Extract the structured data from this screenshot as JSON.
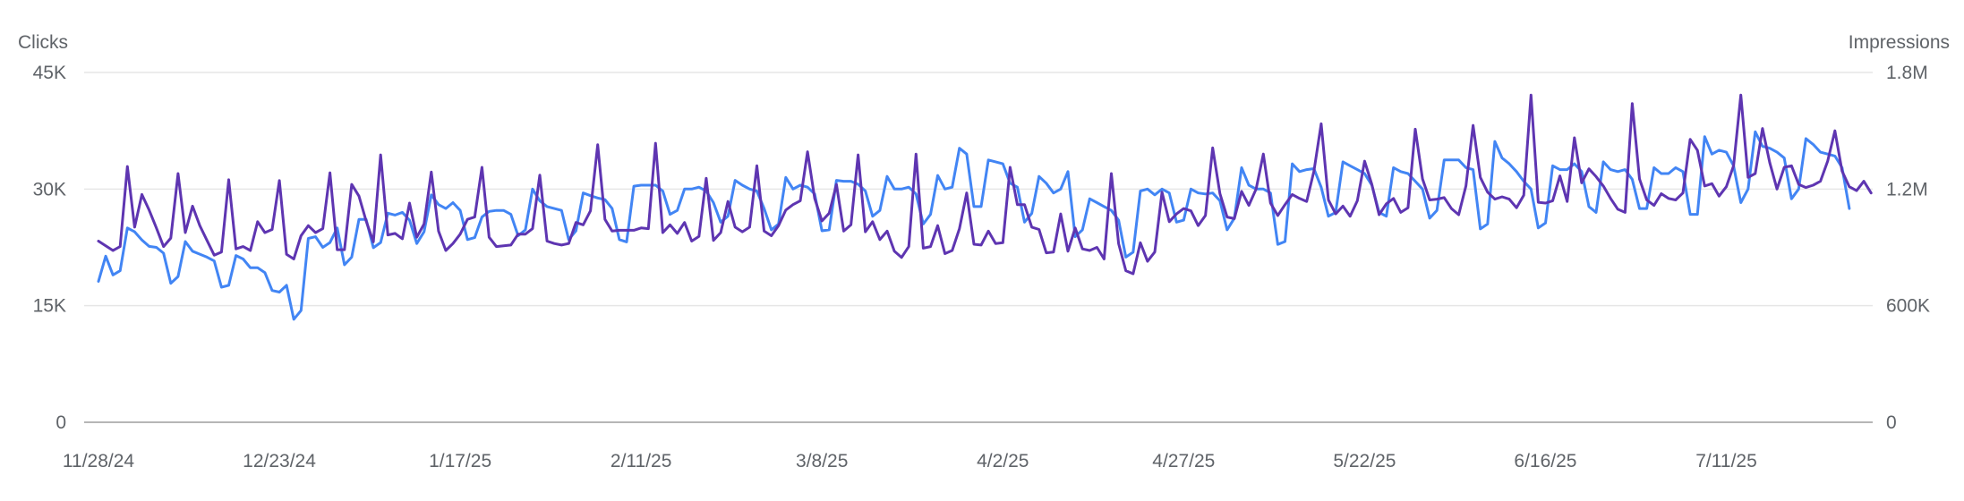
{
  "chart_data": {
    "type": "line",
    "y_left_label": "Clicks",
    "y_right_label": "Impressions",
    "y_left_ticks": [
      "45K",
      "30K",
      "15K",
      "0"
    ],
    "y_right_ticks": [
      "1.8M",
      "1.2M",
      "600K",
      "0"
    ],
    "y_left_lim": [
      0,
      45000
    ],
    "y_right_lim": [
      0,
      1800000
    ],
    "x_tick_labels": [
      "11/28/24",
      "12/23/24",
      "1/17/25",
      "2/11/25",
      "3/8/25",
      "4/2/25",
      "4/27/25",
      "5/22/25",
      "6/16/25",
      "7/11/25"
    ],
    "x_start": "2024-11-28",
    "x_end": "2025-07-29",
    "grid": true,
    "colors": {
      "clicks": "#5e35b1",
      "impressions": "#4285f4"
    },
    "series": [
      {
        "key": "clicks",
        "axis": "left",
        "values": [
          23300,
          22700,
          22100,
          22600,
          32900,
          25100,
          29300,
          27300,
          25000,
          22600,
          23700,
          32000,
          24400,
          27800,
          25300,
          23400,
          21500,
          21900,
          31200,
          22300,
          22600,
          22100,
          25800,
          24400,
          24800,
          31100,
          21600,
          21000,
          24000,
          25300,
          24400,
          24900,
          32100,
          22200,
          22200,
          30600,
          29100,
          25900,
          23200,
          34400,
          24100,
          24300,
          23600,
          28200,
          23800,
          25500,
          32200,
          24600,
          22100,
          23000,
          24200,
          26100,
          26400,
          32800,
          23800,
          22600,
          22700,
          22800,
          24200,
          24200,
          24900,
          31800,
          23300,
          23000,
          22800,
          23000,
          25700,
          25400,
          27200,
          35700,
          26100,
          24600,
          24700,
          24700,
          24700,
          25000,
          24900,
          35900,
          24400,
          25400,
          24300,
          25700,
          23300,
          23900,
          31400,
          23400,
          24400,
          28400,
          25100,
          24500,
          25100,
          33000,
          24600,
          24000,
          25300,
          27300,
          28000,
          28500,
          34800,
          28800,
          25900,
          26900,
          30600,
          24600,
          25400,
          34400,
          24500,
          25800,
          23500,
          24600,
          22000,
          21200,
          22600,
          34500,
          22400,
          22600,
          25300,
          21700,
          22100,
          24900,
          29500,
          22900,
          22800,
          24600,
          23000,
          23100,
          32800,
          28000,
          28000,
          25100,
          24800,
          21800,
          21900,
          26800,
          22000,
          25000,
          22300,
          22100,
          22500,
          21000,
          32000,
          23000,
          19500,
          19100,
          23100,
          20700,
          21900,
          29600,
          25800,
          26800,
          27500,
          27200,
          25300,
          26600,
          35300,
          29400,
          26400,
          26200,
          29700,
          27900,
          30000,
          34500,
          28200,
          26600,
          28000,
          29300,
          28800,
          28400,
          32300,
          38400,
          28600,
          26800,
          27800,
          26500,
          28500,
          33600,
          30600,
          26700,
          28100,
          28800,
          27000,
          27600,
          37700,
          31300,
          28600,
          28700,
          28900,
          27500,
          26700,
          30400,
          38200,
          31500,
          29600,
          28700,
          29000,
          28700,
          27600,
          29200,
          42100,
          28300,
          28200,
          28500,
          31700,
          28400,
          36600,
          30800,
          32600,
          31600,
          30400,
          28800,
          27400,
          27000,
          41000,
          31300,
          28600,
          27900,
          29400,
          28800,
          28600,
          29500,
          36400,
          35000,
          30400,
          30700,
          29100,
          30300,
          33000,
          42100,
          31500,
          32000,
          37800,
          33400,
          30000,
          32800,
          33000,
          30600,
          30200,
          30500,
          31000,
          33600,
          37500,
          32300,
          30300,
          29800,
          31000,
          29500
        ]
      },
      {
        "key": "impressions",
        "axis": "right",
        "values": [
          725000,
          855000,
          758000,
          780000,
          1000000,
          980000,
          938000,
          905000,
          900000,
          870000,
          715000,
          750000,
          930000,
          880000,
          865000,
          850000,
          830000,
          695000,
          705000,
          858000,
          840000,
          795000,
          795000,
          770000,
          678000,
          670000,
          705000,
          530000,
          575000,
          946000,
          955000,
          900000,
          925000,
          1000000,
          810000,
          850000,
          1044000,
          1044000,
          898000,
          925000,
          1076000,
          1066000,
          1080000,
          1040000,
          920000,
          980000,
          1170000,
          1120000,
          1100000,
          1130000,
          1090000,
          940000,
          950000,
          1056000,
          1085000,
          1090000,
          1090000,
          1070000,
          960000,
          990000,
          1200000,
          1140000,
          1110000,
          1100000,
          1090000,
          940000,
          985000,
          1180000,
          1166000,
          1154000,
          1146000,
          1100000,
          940000,
          928000,
          1215000,
          1220000,
          1220000,
          1220000,
          1190000,
          1070000,
          1090000,
          1200000,
          1200000,
          1210000,
          1190000,
          1130000,
          1030000,
          1060000,
          1245000,
          1220000,
          1200000,
          1190000,
          1100000,
          990000,
          1020000,
          1260000,
          1200000,
          1220000,
          1210000,
          1175000,
          985000,
          990000,
          1245000,
          1240000,
          1240000,
          1225000,
          1190000,
          1060000,
          1090000,
          1265000,
          1200000,
          1200000,
          1210000,
          1175000,
          1020000,
          1070000,
          1270000,
          1200000,
          1210000,
          1410000,
          1380000,
          1110000,
          1110000,
          1350000,
          1340000,
          1330000,
          1230000,
          1210000,
          1030000,
          1075000,
          1265000,
          1230000,
          1180000,
          1200000,
          1290000,
          955000,
          990000,
          1150000,
          1130000,
          1110000,
          1090000,
          1040000,
          850000,
          875000,
          1190000,
          1200000,
          1170000,
          1200000,
          1180000,
          1030000,
          1040000,
          1200000,
          1180000,
          1175000,
          1180000,
          1140000,
          990000,
          1050000,
          1310000,
          1220000,
          1200000,
          1200000,
          1180000,
          915000,
          930000,
          1330000,
          1290000,
          1300000,
          1305000,
          1210000,
          1060000,
          1080000,
          1340000,
          1320000,
          1300000,
          1280000,
          1220000,
          1080000,
          1060000,
          1310000,
          1290000,
          1280000,
          1240000,
          1200000,
          1050000,
          1090000,
          1350000,
          1350000,
          1350000,
          1310000,
          1300000,
          995000,
          1020000,
          1445000,
          1360000,
          1330000,
          1290000,
          1240000,
          1200000,
          1000000,
          1025000,
          1320000,
          1300000,
          1300000,
          1330000,
          1290000,
          1110000,
          1080000,
          1340000,
          1300000,
          1290000,
          1300000,
          1250000,
          1100000,
          1100000,
          1310000,
          1280000,
          1280000,
          1310000,
          1290000,
          1070000,
          1070000,
          1470000,
          1380000,
          1400000,
          1390000,
          1320000,
          1130000,
          1200000,
          1495000,
          1420000,
          1410000,
          1390000,
          1360000,
          1150000,
          1200000,
          1460000,
          1430000,
          1390000,
          1380000,
          1370000,
          1310000,
          1100000
        ]
      }
    ]
  }
}
